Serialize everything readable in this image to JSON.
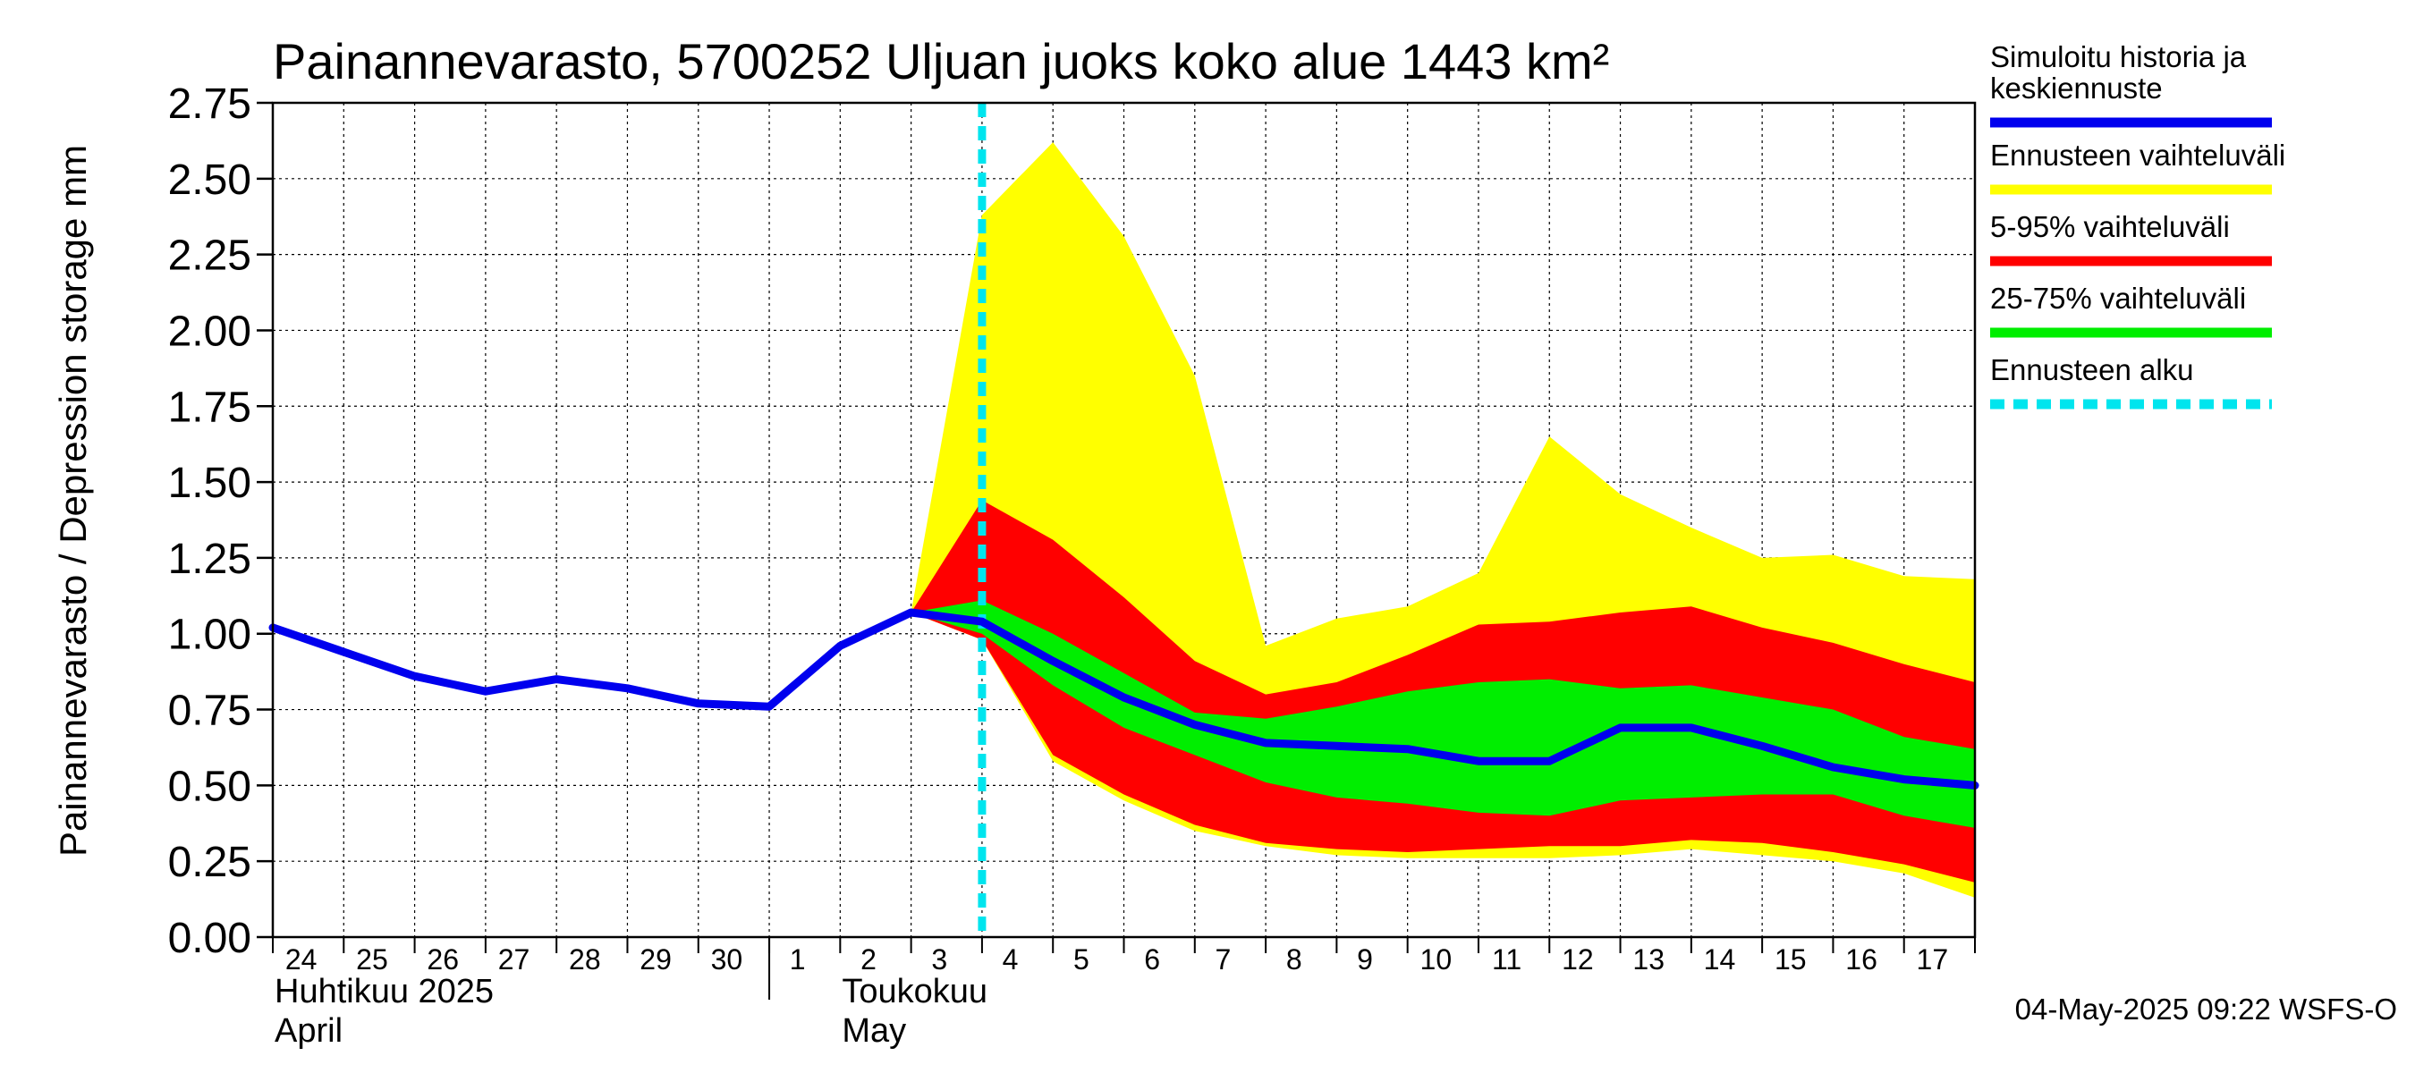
{
  "chart_data": {
    "type": "area",
    "title": "Painannevarasto, 5700252 Uljuan juoks koko alue 1443 km²",
    "ylabel": "Painannevarasto / Depression storage    mm",
    "ylim": [
      0,
      2.75
    ],
    "yticks": [
      0.0,
      0.25,
      0.5,
      0.75,
      1.0,
      1.25,
      1.5,
      1.75,
      2.0,
      2.25,
      2.5,
      2.75
    ],
    "ytick_labels": [
      "0.00",
      "0.25",
      "0.50",
      "0.75",
      "1.00",
      "1.25",
      "1.50",
      "1.75",
      "2.00",
      "2.25",
      "2.50",
      "2.75"
    ],
    "x_dates": [
      "2025-04-24",
      "2025-04-25",
      "2025-04-26",
      "2025-04-27",
      "2025-04-28",
      "2025-04-29",
      "2025-04-30",
      "2025-05-01",
      "2025-05-02",
      "2025-05-03",
      "2025-05-04",
      "2025-05-05",
      "2025-05-06",
      "2025-05-07",
      "2025-05-08",
      "2025-05-09",
      "2025-05-10",
      "2025-05-11",
      "2025-05-12",
      "2025-05-13",
      "2025-05-14",
      "2025-05-15",
      "2025-05-16",
      "2025-05-17",
      "2025-05-18"
    ],
    "xtick_labels": [
      "24",
      "25",
      "26",
      "27",
      "28",
      "29",
      "30",
      "1",
      "2",
      "3",
      "4",
      "5",
      "6",
      "7",
      "8",
      "9",
      "10",
      "11",
      "12",
      "13",
      "14",
      "15",
      "16",
      "17"
    ],
    "month_labels": [
      {
        "line1": "Huhtikuu  2025",
        "line2": "April",
        "date": "2025-04-24"
      },
      {
        "line1": "Toukokuu",
        "line2": "May",
        "date": "2025-05-02"
      }
    ],
    "month_boundary": "2025-05-01",
    "forecast_start": "2025-05-04",
    "grid": true,
    "legend_position": "right",
    "series": [
      {
        "name": "Simuloitu historia ja keskiennuste",
        "kind": "line",
        "color": "#0000ee",
        "x": [
          "2025-04-24",
          "2025-04-25",
          "2025-04-26",
          "2025-04-27",
          "2025-04-28",
          "2025-04-29",
          "2025-04-30",
          "2025-05-01",
          "2025-05-02",
          "2025-05-03",
          "2025-05-04",
          "2025-05-05",
          "2025-05-06",
          "2025-05-07",
          "2025-05-08",
          "2025-05-09",
          "2025-05-10",
          "2025-05-11",
          "2025-05-12",
          "2025-05-13",
          "2025-05-14",
          "2025-05-15",
          "2025-05-16",
          "2025-05-17",
          "2025-05-18"
        ],
        "values": [
          1.02,
          0.94,
          0.86,
          0.81,
          0.85,
          0.82,
          0.77,
          0.76,
          0.96,
          1.07,
          1.04,
          0.91,
          0.79,
          0.7,
          0.64,
          0.63,
          0.62,
          0.58,
          0.58,
          0.69,
          0.69,
          0.63,
          0.56,
          0.52,
          0.5
        ]
      },
      {
        "name": "Ennusteen vaihteluväli",
        "kind": "band",
        "color": "#ffff00",
        "x": [
          "2025-05-03",
          "2025-05-04",
          "2025-05-05",
          "2025-05-06",
          "2025-05-07",
          "2025-05-08",
          "2025-05-09",
          "2025-05-10",
          "2025-05-11",
          "2025-05-12",
          "2025-05-13",
          "2025-05-14",
          "2025-05-15",
          "2025-05-16",
          "2025-05-17",
          "2025-05-18"
        ],
        "upper": [
          1.07,
          2.38,
          2.62,
          2.31,
          1.85,
          0.96,
          1.05,
          1.09,
          1.2,
          1.65,
          1.46,
          1.35,
          1.25,
          1.26,
          1.19,
          1.18
        ],
        "lower": [
          1.07,
          0.98,
          0.58,
          0.45,
          0.35,
          0.3,
          0.27,
          0.26,
          0.26,
          0.26,
          0.27,
          0.29,
          0.27,
          0.25,
          0.21,
          0.13
        ]
      },
      {
        "name": "5-95% vaihteluväli",
        "kind": "band",
        "color": "#ff0000",
        "x": [
          "2025-05-03",
          "2025-05-04",
          "2025-05-05",
          "2025-05-06",
          "2025-05-07",
          "2025-05-08",
          "2025-05-09",
          "2025-05-10",
          "2025-05-11",
          "2025-05-12",
          "2025-05-13",
          "2025-05-14",
          "2025-05-15",
          "2025-05-16",
          "2025-05-17",
          "2025-05-18"
        ],
        "upper": [
          1.07,
          1.44,
          1.31,
          1.12,
          0.91,
          0.8,
          0.84,
          0.93,
          1.03,
          1.04,
          1.07,
          1.09,
          1.02,
          0.97,
          0.9,
          0.84
        ],
        "lower": [
          1.07,
          0.98,
          0.6,
          0.47,
          0.37,
          0.31,
          0.29,
          0.28,
          0.29,
          0.3,
          0.3,
          0.32,
          0.31,
          0.28,
          0.24,
          0.18
        ]
      },
      {
        "name": "25-75% vaihteluväli",
        "kind": "band",
        "color": "#00ee00",
        "x": [
          "2025-05-03",
          "2025-05-04",
          "2025-05-05",
          "2025-05-06",
          "2025-05-07",
          "2025-05-08",
          "2025-05-09",
          "2025-05-10",
          "2025-05-11",
          "2025-05-12",
          "2025-05-13",
          "2025-05-14",
          "2025-05-15",
          "2025-05-16",
          "2025-05-17",
          "2025-05-18"
        ],
        "upper": [
          1.07,
          1.11,
          1.0,
          0.87,
          0.74,
          0.72,
          0.76,
          0.81,
          0.84,
          0.85,
          0.82,
          0.83,
          0.79,
          0.75,
          0.66,
          0.62
        ],
        "lower": [
          1.07,
          1.0,
          0.83,
          0.69,
          0.6,
          0.51,
          0.46,
          0.44,
          0.41,
          0.4,
          0.45,
          0.46,
          0.47,
          0.47,
          0.4,
          0.36
        ]
      },
      {
        "name": "Ennusteen alku",
        "kind": "vline",
        "color": "#00e5ee",
        "x": "2025-05-04"
      }
    ],
    "legend": [
      {
        "label": "Simuloitu historia ja\nkeskiennuste",
        "color": "#0000ee",
        "style": "solid"
      },
      {
        "label": "Ennusteen vaihteluväli",
        "color": "#ffff00",
        "style": "solid"
      },
      {
        "label": "5-95% vaihteluväli",
        "color": "#ff0000",
        "style": "solid"
      },
      {
        "label": "25-75% vaihteluväli",
        "color": "#00ee00",
        "style": "solid"
      },
      {
        "label": "Ennusteen alku",
        "color": "#00e5ee",
        "style": "dashed"
      }
    ],
    "timestamp": "04-May-2025 09:22 WSFS-O"
  }
}
